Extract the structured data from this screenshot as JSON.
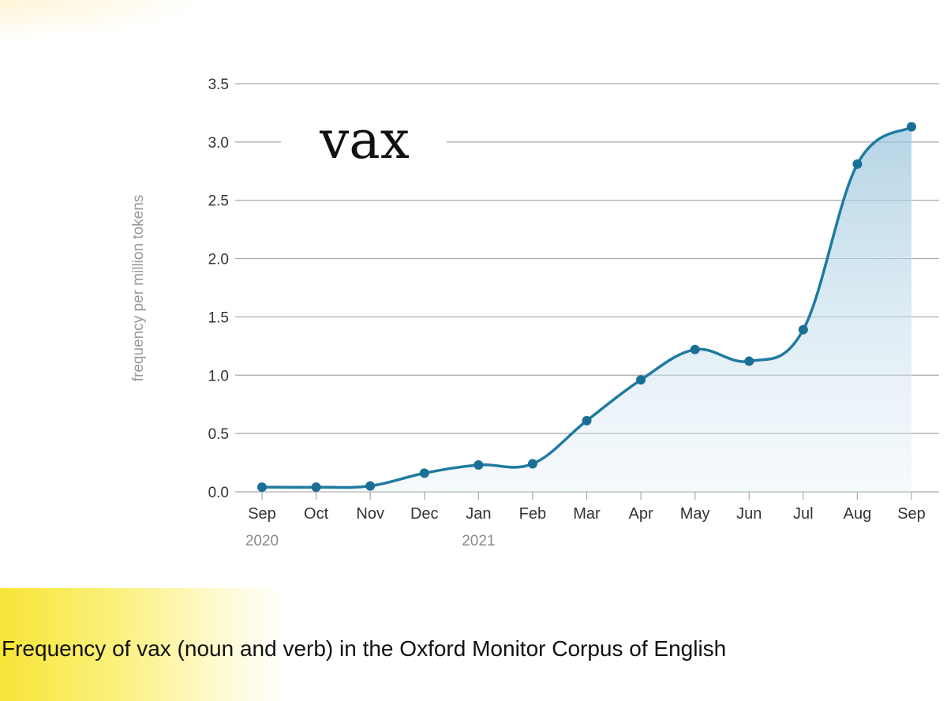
{
  "chart_data": {
    "type": "area",
    "title": "vax",
    "ylabel": "frequency per million tokens",
    "xlabel": "",
    "ylim": [
      0,
      3.5
    ],
    "yticks": [
      "0.0",
      "0.5",
      "1.0",
      "1.5",
      "2.0",
      "2.5",
      "3.0",
      "3.5"
    ],
    "categories": [
      "Sep",
      "Oct",
      "Nov",
      "Dec",
      "Jan",
      "Feb",
      "Mar",
      "Apr",
      "May",
      "Jun",
      "Jul",
      "Aug",
      "Sep"
    ],
    "year_labels": [
      {
        "index": 0,
        "label": "2020"
      },
      {
        "index": 4,
        "label": "2021"
      }
    ],
    "series": [
      {
        "name": "vax",
        "values": [
          0.04,
          0.04,
          0.05,
          0.16,
          0.23,
          0.24,
          0.61,
          0.96,
          1.22,
          1.12,
          1.39,
          2.81,
          3.13
        ]
      }
    ],
    "colors": {
      "line": "#1f7aa0",
      "point": "#1a6f96",
      "fill": "#9cc6dd",
      "grid": "#a8a8a8",
      "tick": "#333333",
      "ylabel": "#999999"
    }
  },
  "caption": "Frequency of vax (noun and verb) in the Oxford Monitor Corpus of English"
}
